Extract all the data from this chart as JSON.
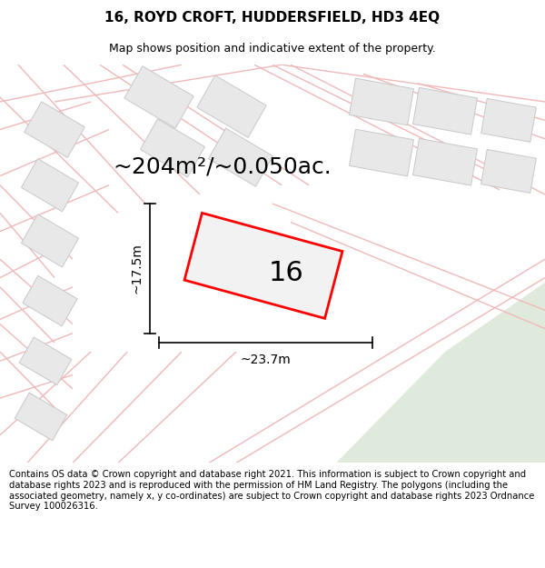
{
  "title": "16, ROYD CROFT, HUDDERSFIELD, HD3 4EQ",
  "subtitle": "Map shows position and indicative extent of the property.",
  "area_text": "~204m²/~0.050ac.",
  "number_label": "16",
  "dim_width": "~23.7m",
  "dim_height": "~17.5m",
  "footer": "Contains OS data © Crown copyright and database right 2021. This information is subject to Crown copyright and database rights 2023 and is reproduced with the permission of HM Land Registry. The polygons (including the associated geometry, namely x, y co-ordinates) are subject to Crown copyright and database rights 2023 Ordnance Survey 100026316.",
  "bg_color": "#f7f7f7",
  "green_area_color": "#e0eadc",
  "building_fill": "#e8e8e8",
  "building_edge": "#c8c8c8",
  "road_color": "#f0b8b8",
  "highlight_color": "#ff0000",
  "title_fontsize": 11,
  "subtitle_fontsize": 9,
  "area_fontsize": 18,
  "number_fontsize": 22,
  "dim_fontsize": 10,
  "footer_fontsize": 7.2
}
